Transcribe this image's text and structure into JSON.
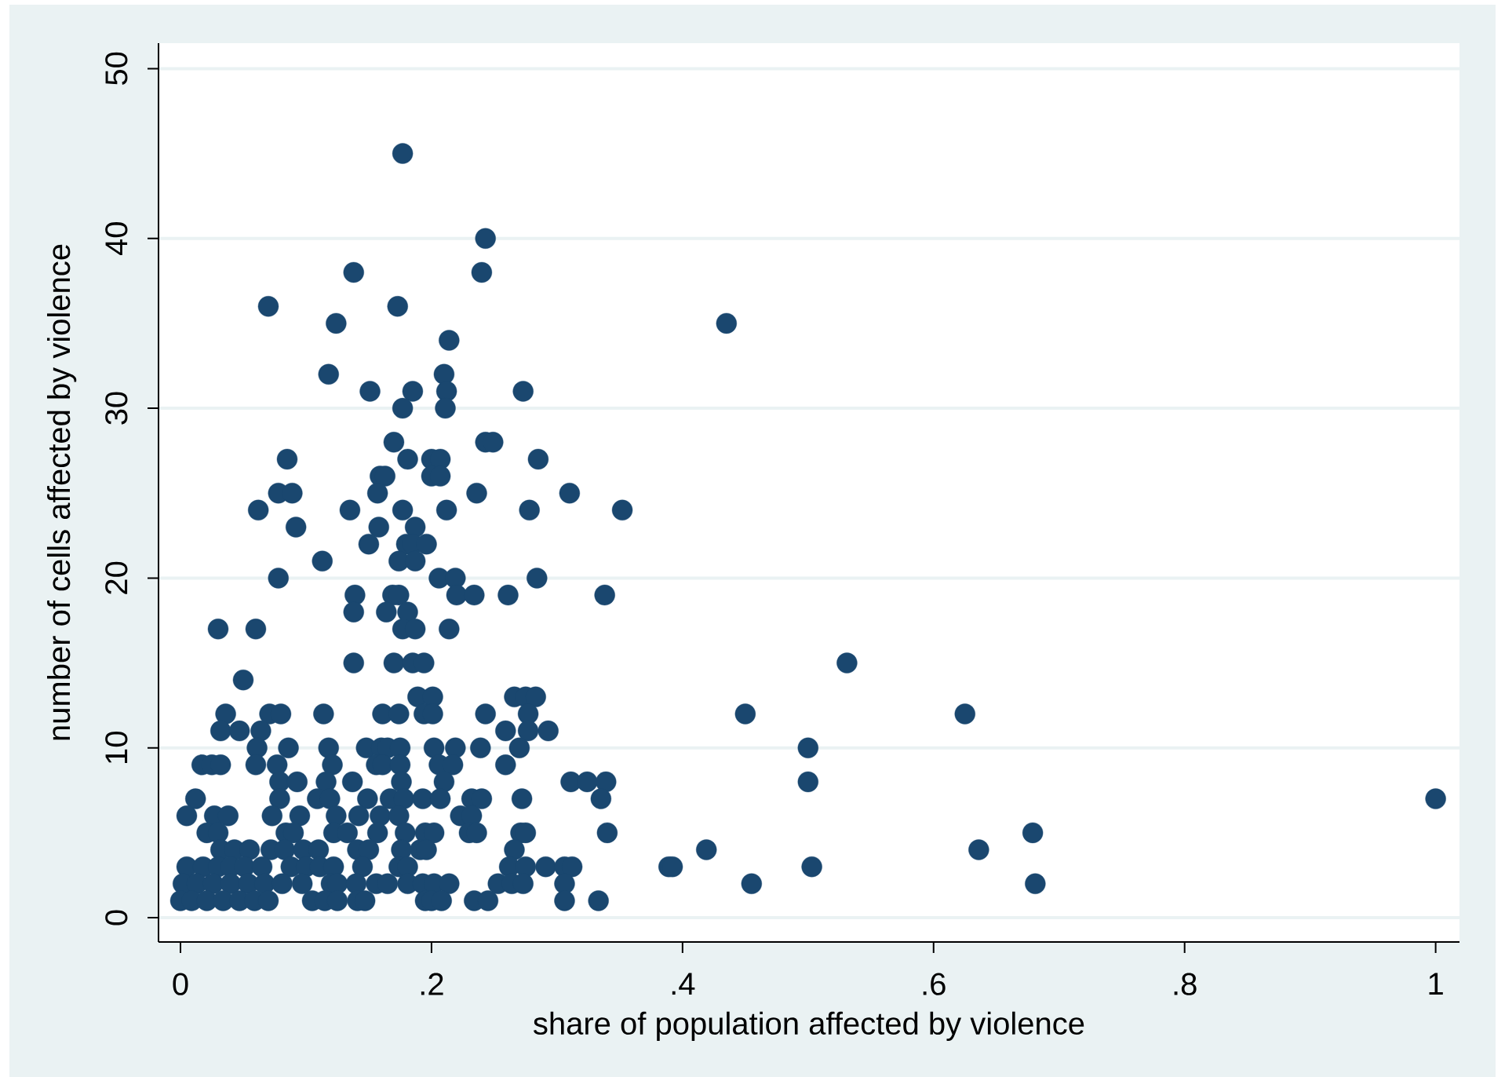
{
  "chart_data": {
    "type": "scatter",
    "xlabel": "share of population affected by violence",
    "ylabel": "number of cells affected by violence",
    "color": "#1a476f",
    "marker": "circle",
    "grid": "y",
    "xlim": [
      -0.0175,
      1.019
    ],
    "ylim": [
      -1.43,
      51.5
    ],
    "xticks": [
      0,
      {
        "value": 0.2,
        "label": ".2"
      },
      {
        "value": 0.4,
        "label": ".4"
      },
      {
        "value": 0.6,
        "label": ".6"
      },
      {
        "value": 0.8,
        "label": ".8"
      },
      1
    ],
    "yticks": [
      0,
      10,
      20,
      30,
      40,
      50
    ],
    "x": [
      0.177,
      0.243,
      0.138,
      0.24,
      0.07,
      0.173,
      0.124,
      0.435,
      0.214,
      0.118,
      0.21,
      0.151,
      0.185,
      0.212,
      0.273,
      0.177,
      0.211,
      0.17,
      0.243,
      0.249,
      0.085,
      0.181,
      0.2,
      0.207,
      0.285,
      0.159,
      0.163,
      0.2,
      0.207,
      0.078,
      0.089,
      0.157,
      0.236,
      0.31,
      0.062,
      0.135,
      0.177,
      0.212,
      0.278,
      0.352,
      0.092,
      0.158,
      0.187,
      0.15,
      0.18,
      0.185,
      0.196,
      0.113,
      0.174,
      0.187,
      0.078,
      0.206,
      0.219,
      0.284,
      0.139,
      0.169,
      0.174,
      0.22,
      0.234,
      0.261,
      0.338,
      0.138,
      0.164,
      0.181,
      0.03,
      0.06,
      0.177,
      0.187,
      0.214,
      0.138,
      0.17,
      0.185,
      0.194,
      0.531,
      0.05,
      0.189,
      0.201,
      0.266,
      0.275,
      0.283,
      0.036,
      0.071,
      0.08,
      0.114,
      0.161,
      0.174,
      0.194,
      0.201,
      0.243,
      0.277,
      0.45,
      0.625,
      0.032,
      0.047,
      0.064,
      0.259,
      0.277,
      0.293,
      0.061,
      0.086,
      0.118,
      0.148,
      0.16,
      0.165,
      0.175,
      0.202,
      0.219,
      0.239,
      0.27,
      0.5,
      0.017,
      0.025,
      0.032,
      0.06,
      0.077,
      0.121,
      0.156,
      0.161,
      0.175,
      0.206,
      0.217,
      0.259,
      0.079,
      0.093,
      0.116,
      0.137,
      0.176,
      0.21,
      0.311,
      0.324,
      0.339,
      0.5,
      0.012,
      0.079,
      0.109,
      0.119,
      0.149,
      0.167,
      0.178,
      0.193,
      0.207,
      0.232,
      0.24,
      0.272,
      0.335,
      1.0,
      0.005,
      0.027,
      0.038,
      0.073,
      0.095,
      0.124,
      0.142,
      0.159,
      0.174,
      0.223,
      0.232,
      0.021,
      0.03,
      0.084,
      0.09,
      0.122,
      0.133,
      0.157,
      0.179,
      0.195,
      0.202,
      0.23,
      0.236,
      0.271,
      0.275,
      0.34,
      0.679,
      0.032,
      0.043,
      0.055,
      0.072,
      0.083,
      0.098,
      0.11,
      0.141,
      0.15,
      0.176,
      0.191,
      0.196,
      0.266,
      0.419,
      0.636,
      0.005,
      0.018,
      0.03,
      0.04,
      0.051,
      0.065,
      0.088,
      0.1,
      0.111,
      0.122,
      0.145,
      0.174,
      0.181,
      0.262,
      0.275,
      0.291,
      0.306,
      0.312,
      0.389,
      0.392,
      0.503,
      0.002,
      0.013,
      0.026,
      0.04,
      0.054,
      0.067,
      0.081,
      0.097,
      0.12,
      0.125,
      0.14,
      0.156,
      0.165,
      0.181,
      0.193,
      0.202,
      0.214,
      0.253,
      0.264,
      0.273,
      0.306,
      0.455,
      0.681,
      0.0,
      0.009,
      0.021,
      0.034,
      0.047,
      0.059,
      0.07,
      0.105,
      0.115,
      0.125,
      0.141,
      0.147,
      0.195,
      0.2,
      0.208,
      0.234,
      0.245,
      0.306,
      0.333
    ],
    "values": [
      45,
      40,
      38,
      38,
      36,
      36,
      35,
      35,
      34,
      32,
      32,
      31,
      31,
      31,
      31,
      30,
      30,
      28,
      28,
      28,
      27,
      27,
      27,
      27,
      27,
      26,
      26,
      26,
      26,
      25,
      25,
      25,
      25,
      25,
      24,
      24,
      24,
      24,
      24,
      24,
      23,
      23,
      23,
      22,
      22,
      22,
      22,
      21,
      21,
      21,
      20,
      20,
      20,
      20,
      19,
      19,
      19,
      19,
      19,
      19,
      19,
      18,
      18,
      18,
      17,
      17,
      17,
      17,
      17,
      15,
      15,
      15,
      15,
      15,
      14,
      13,
      13,
      13,
      13,
      13,
      12,
      12,
      12,
      12,
      12,
      12,
      12,
      12,
      12,
      12,
      12,
      12,
      11,
      11,
      11,
      11,
      11,
      11,
      10,
      10,
      10,
      10,
      10,
      10,
      10,
      10,
      10,
      10,
      10,
      10,
      9,
      9,
      9,
      9,
      9,
      9,
      9,
      9,
      9,
      9,
      9,
      9,
      8,
      8,
      8,
      8,
      8,
      8,
      8,
      8,
      8,
      8,
      7,
      7,
      7,
      7,
      7,
      7,
      7,
      7,
      7,
      7,
      7,
      7,
      7,
      7,
      6,
      6,
      6,
      6,
      6,
      6,
      6,
      6,
      6,
      6,
      6,
      5,
      5,
      5,
      5,
      5,
      5,
      5,
      5,
      5,
      5,
      5,
      5,
      5,
      5,
      5,
      5,
      4,
      4,
      4,
      4,
      4,
      4,
      4,
      4,
      4,
      4,
      4,
      4,
      4,
      4,
      4,
      3,
      3,
      3,
      3,
      3,
      3,
      3,
      3,
      3,
      3,
      3,
      3,
      3,
      3,
      3,
      3,
      3,
      3,
      3,
      3,
      3,
      2,
      2,
      2,
      2,
      2,
      2,
      2,
      2,
      2,
      2,
      2,
      2,
      2,
      2,
      2,
      2,
      2,
      2,
      2,
      2,
      2,
      2,
      2,
      1,
      1,
      1,
      1,
      1,
      1,
      1,
      1,
      1,
      1,
      1,
      1,
      1,
      1,
      1,
      1,
      1,
      1,
      1
    ]
  }
}
